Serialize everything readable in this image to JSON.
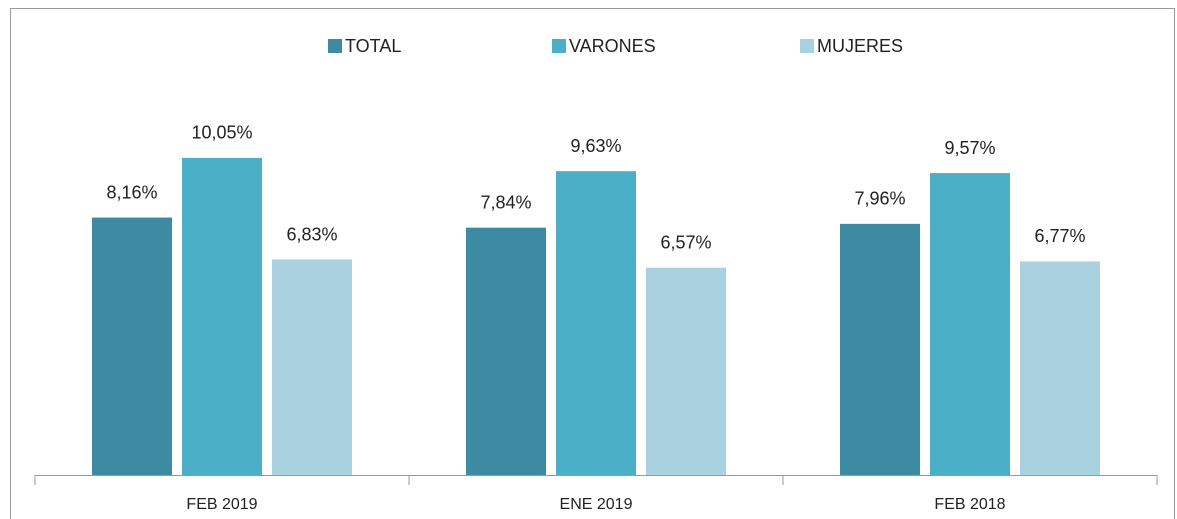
{
  "chart_data": {
    "type": "bar",
    "categories": [
      "FEB 2019",
      "ENE 2019",
      "FEB 2018"
    ],
    "series": [
      {
        "name": "TOTAL",
        "color": "#3d8aa3",
        "values": [
          8.16,
          7.84,
          7.96
        ],
        "value_labels": [
          "8,16%",
          "7,84%",
          "7,96%"
        ]
      },
      {
        "name": "VARONES",
        "color": "#4bafc8",
        "values": [
          10.05,
          9.63,
          9.57
        ],
        "value_labels": [
          "10,05%",
          "9,63%",
          "9,57%"
        ]
      },
      {
        "name": "MUJERES",
        "color": "#a9d1df",
        "values": [
          6.83,
          6.57,
          6.77
        ],
        "value_labels": [
          "6,83%",
          "6,57%",
          "6,77%"
        ]
      }
    ],
    "legend": "top"
  }
}
